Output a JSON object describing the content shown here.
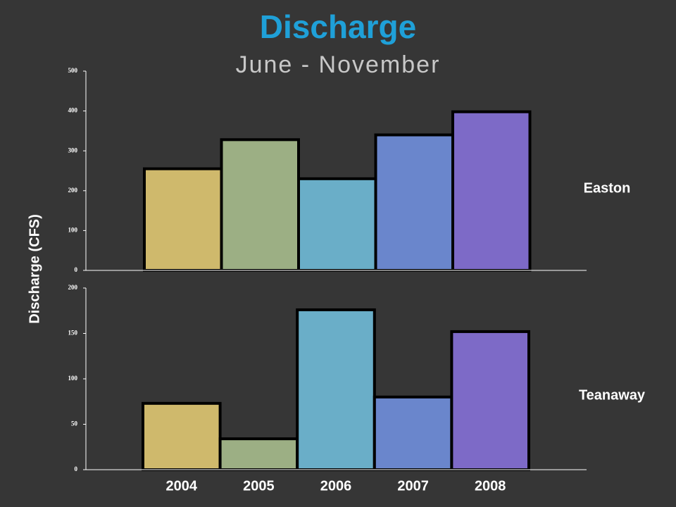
{
  "title": "Discharge",
  "subtitle": "June - November",
  "y_label": "Discharge (CFS)",
  "chart_data": [
    {
      "type": "bar",
      "name": "Easton",
      "categories": [
        null,
        null,
        null,
        null,
        null
      ],
      "values": [
        255,
        328,
        230,
        340,
        398
      ],
      "colors": [
        "#cfb96c",
        "#9caf84",
        "#6aaec8",
        "#6a86cc",
        "#7d6ac7"
      ],
      "ylim": [
        0,
        500
      ],
      "yticks": [
        0,
        100,
        200,
        300,
        400,
        500
      ]
    },
    {
      "type": "bar",
      "name": "Teanaway",
      "categories": [
        "2004",
        "2005",
        "2006",
        "2007",
        "2008"
      ],
      "values": [
        73,
        34,
        176,
        80,
        152
      ],
      "colors": [
        "#cfb96c",
        "#9caf84",
        "#6aaec8",
        "#6a86cc",
        "#7d6ac7"
      ],
      "ylim": [
        0,
        200
      ],
      "yticks": [
        0,
        50,
        100,
        150,
        200
      ]
    }
  ]
}
